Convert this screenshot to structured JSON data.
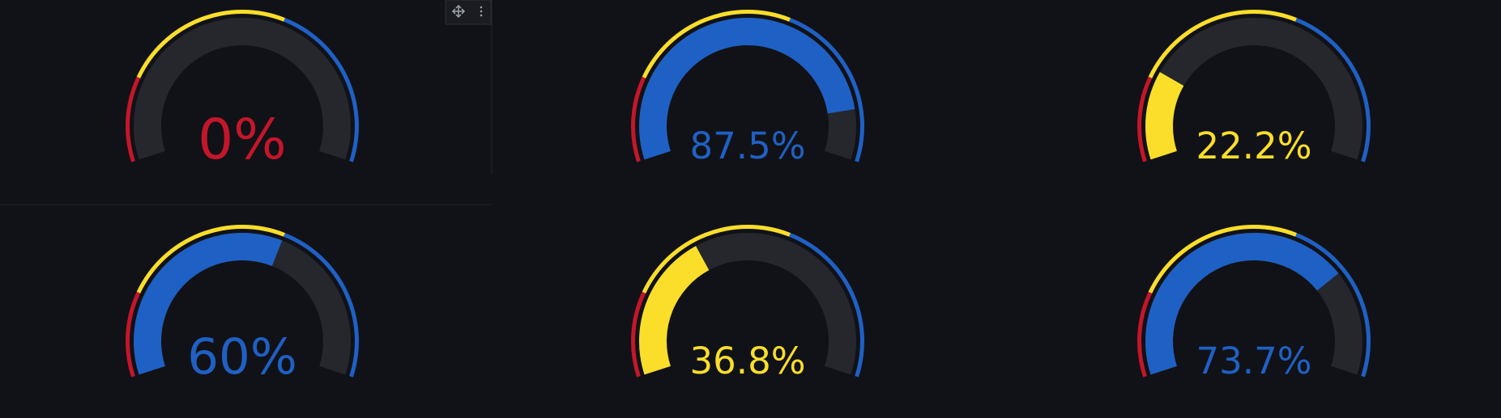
{
  "min": 0,
  "max": 100,
  "thresholds": [
    {
      "value": 0,
      "color": "#c4162a"
    },
    {
      "value": 20,
      "color": "#fade2a"
    },
    {
      "value": 60,
      "color": "#1f60c4"
    }
  ],
  "gauges": [
    {
      "value": 0,
      "value_label": "0%"
    },
    {
      "value": 87.5,
      "value_label": "87.5%"
    },
    {
      "value": 22.2,
      "value_label": "22.2%"
    },
    {
      "value": 60,
      "value_label": "60%"
    },
    {
      "value": 36.8,
      "value_label": "36.8%"
    },
    {
      "value": 73.7,
      "value_label": "73.7%"
    }
  ]
}
